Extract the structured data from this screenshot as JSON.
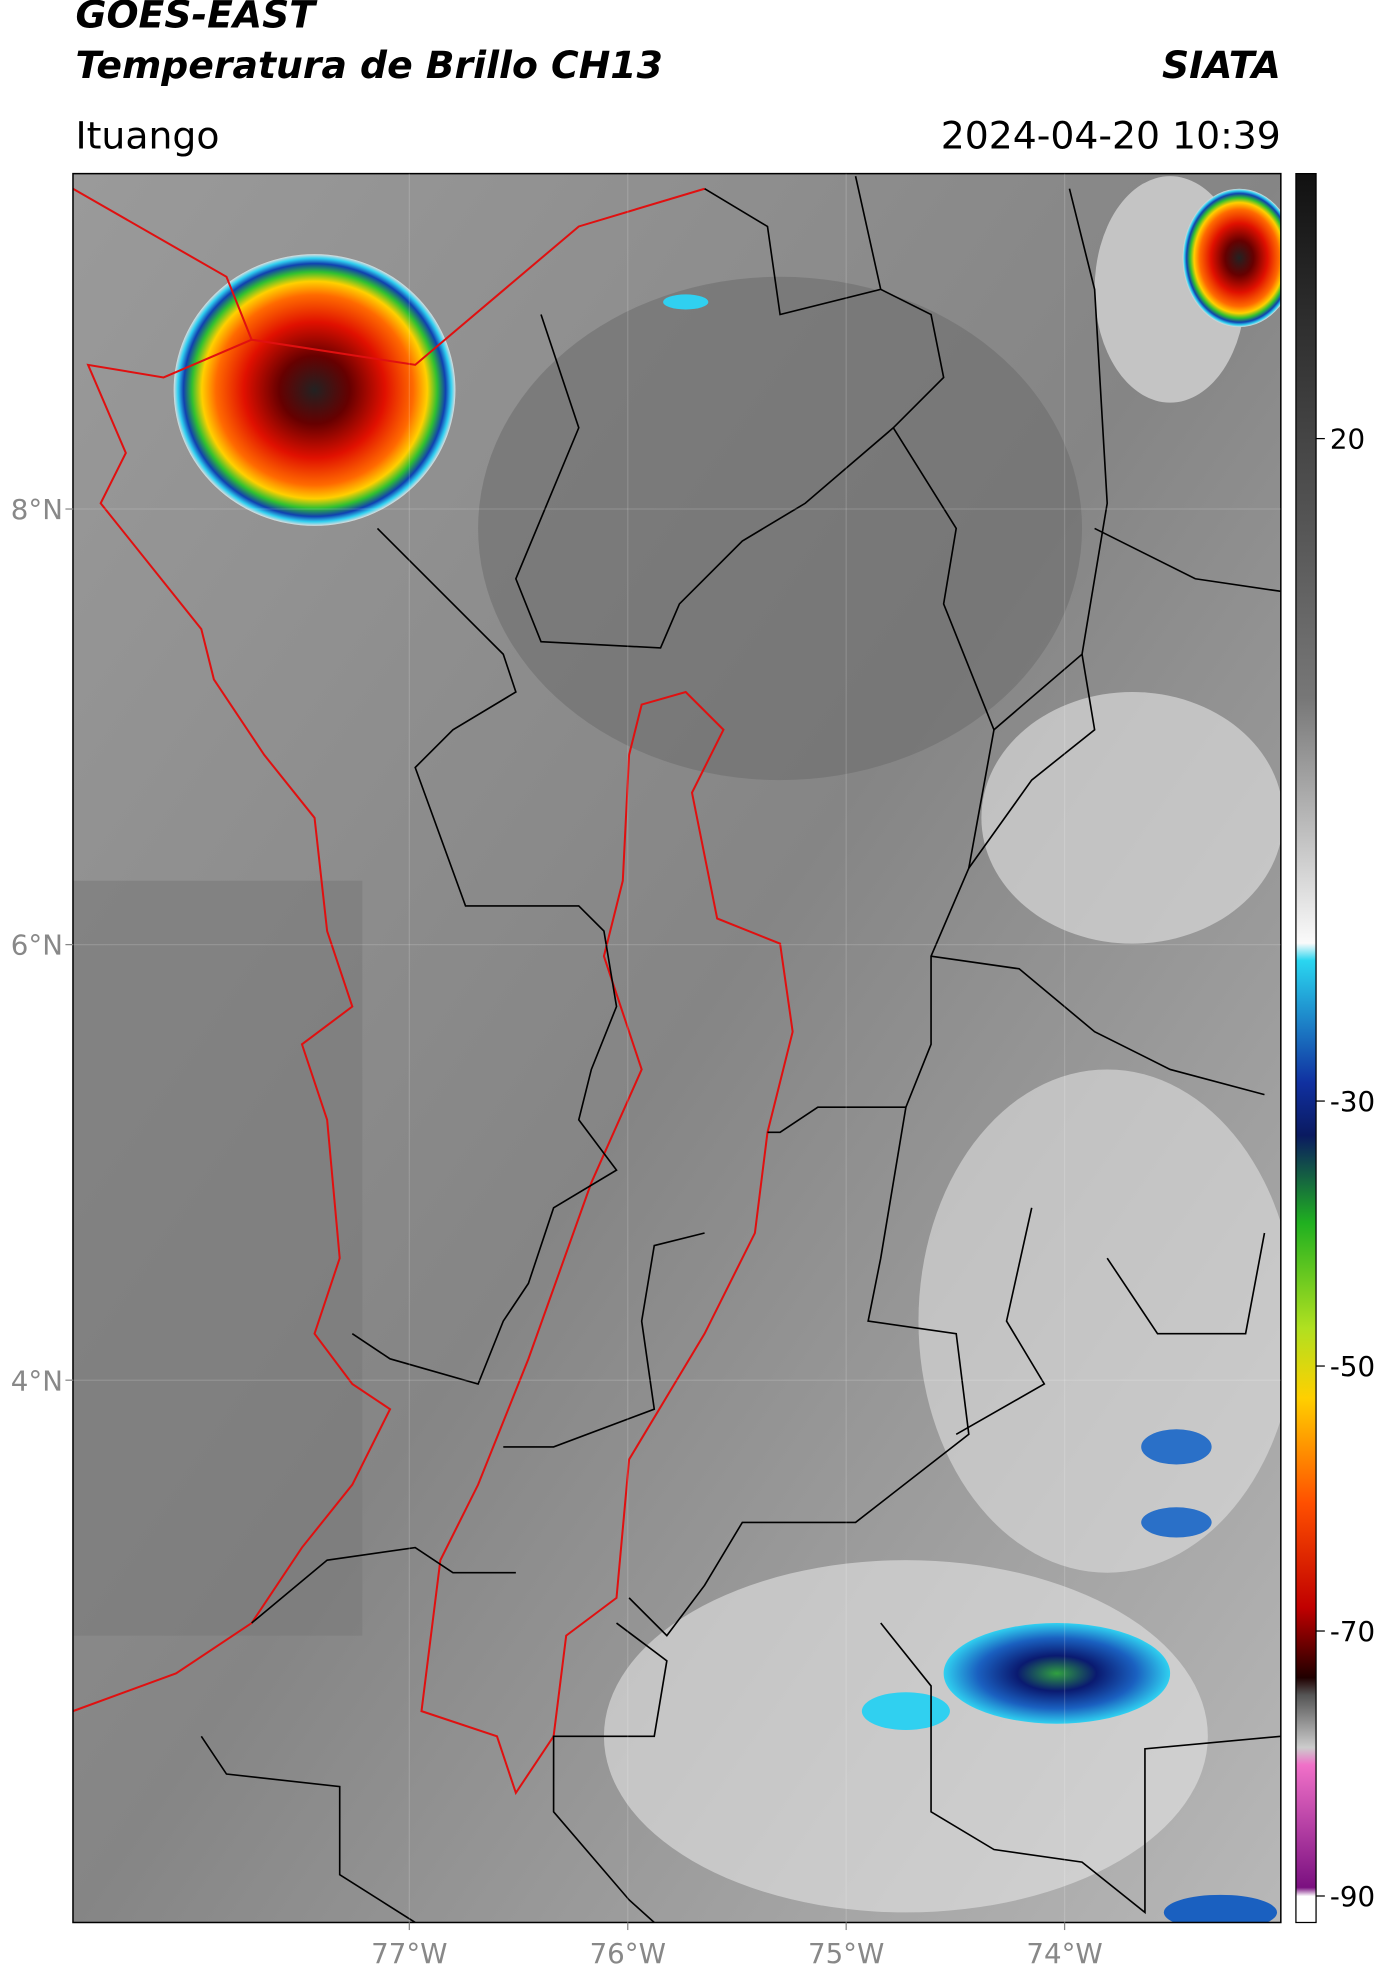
{
  "header": {
    "satellite": "GOES-EAST",
    "product": "Temperatura de Brillo CH13",
    "agency": "SIATA",
    "location": "Ituango",
    "datetime": "2024-04-20 10:39"
  },
  "map": {
    "xlim": [
      -78.54,
      -73.01
    ],
    "ylim": [
      1.51,
      9.54
    ],
    "xticks": [
      {
        "value": -77,
        "label": "77°W"
      },
      {
        "value": -76,
        "label": "76°W"
      },
      {
        "value": -75,
        "label": "75°W"
      },
      {
        "value": -74,
        "label": "74°W"
      }
    ],
    "yticks": [
      {
        "value": 8,
        "label": "8°N"
      },
      {
        "value": 6,
        "label": "6°N"
      },
      {
        "value": 4,
        "label": "4°N"
      }
    ]
  },
  "colorbar": {
    "lim": [
      -92,
      40
    ],
    "ticks": [
      20,
      -30,
      -50,
      -70,
      -90
    ]
  }
}
